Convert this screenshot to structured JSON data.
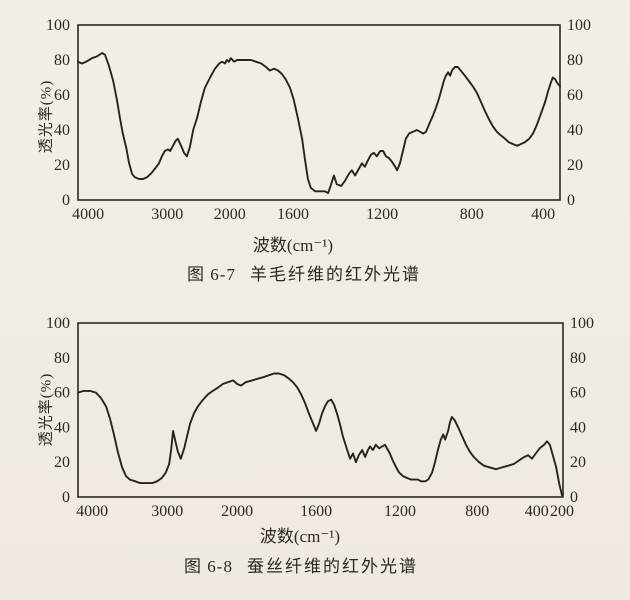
{
  "page": {
    "background_color": "#f2eee6",
    "ink_color": "#2c2823"
  },
  "chart_data": [
    {
      "type": "line",
      "title": "图 6-7  羊毛纤维的红外光谱",
      "caption": {
        "number": "图 6-7",
        "name": "羊毛纤维的红外光谱"
      },
      "xlabel": "波数(cm⁻¹)",
      "ylabel": "透光率(%)",
      "x_unit": "cm⁻¹",
      "ylim": [
        0,
        100
      ],
      "y_ticks": [
        100,
        80,
        60,
        40,
        20,
        0
      ],
      "y_ticks_right": [
        100,
        80,
        60,
        40,
        20,
        0
      ],
      "x_encoding": "fraction of plot width, wavenumber axis non-linear",
      "x_ticks": [
        {
          "label": "4000",
          "pos": 0.021
        },
        {
          "label": "3000",
          "pos": 0.185
        },
        {
          "label": "2000",
          "pos": 0.315
        },
        {
          "label": "1600",
          "pos": 0.446
        },
        {
          "label": "1200",
          "pos": 0.631
        },
        {
          "label": "800",
          "pos": 0.817
        },
        {
          "label": "400",
          "pos": 0.965
        }
      ],
      "axis_color": "#2c2823",
      "line_color": "#262320",
      "points": [
        [
          0.0,
          79
        ],
        [
          0.008,
          78
        ],
        [
          0.017,
          79
        ],
        [
          0.029,
          81
        ],
        [
          0.039,
          82
        ],
        [
          0.05,
          84
        ],
        [
          0.056,
          83
        ],
        [
          0.064,
          77
        ],
        [
          0.073,
          68
        ],
        [
          0.081,
          57
        ],
        [
          0.087,
          47
        ],
        [
          0.093,
          38
        ],
        [
          0.1,
          30
        ],
        [
          0.106,
          21
        ],
        [
          0.112,
          15
        ],
        [
          0.118,
          13
        ],
        [
          0.127,
          12
        ],
        [
          0.135,
          12
        ],
        [
          0.143,
          13
        ],
        [
          0.151,
          15
        ],
        [
          0.16,
          18
        ],
        [
          0.168,
          21
        ],
        [
          0.174,
          25
        ],
        [
          0.18,
          28
        ],
        [
          0.187,
          29
        ],
        [
          0.191,
          28
        ],
        [
          0.197,
          31
        ],
        [
          0.203,
          34
        ],
        [
          0.207,
          35
        ],
        [
          0.214,
          31
        ],
        [
          0.22,
          27
        ],
        [
          0.226,
          25
        ],
        [
          0.232,
          30
        ],
        [
          0.239,
          40
        ],
        [
          0.247,
          47
        ],
        [
          0.255,
          56
        ],
        [
          0.263,
          64
        ],
        [
          0.274,
          70
        ],
        [
          0.284,
          75
        ],
        [
          0.293,
          78
        ],
        [
          0.299,
          79
        ],
        [
          0.305,
          78
        ],
        [
          0.309,
          80
        ],
        [
          0.313,
          79
        ],
        [
          0.317,
          81
        ],
        [
          0.324,
          79
        ],
        [
          0.33,
          80
        ],
        [
          0.338,
          80
        ],
        [
          0.349,
          80
        ],
        [
          0.359,
          80
        ],
        [
          0.369,
          79
        ],
        [
          0.38,
          78
        ],
        [
          0.39,
          76
        ],
        [
          0.398,
          74
        ],
        [
          0.407,
          75
        ],
        [
          0.415,
          74
        ],
        [
          0.423,
          72
        ],
        [
          0.431,
          69
        ],
        [
          0.44,
          64
        ],
        [
          0.448,
          57
        ],
        [
          0.456,
          47
        ],
        [
          0.465,
          35
        ],
        [
          0.471,
          23
        ],
        [
          0.477,
          12
        ],
        [
          0.483,
          7
        ],
        [
          0.492,
          5
        ],
        [
          0.502,
          5
        ],
        [
          0.512,
          5
        ],
        [
          0.519,
          4
        ],
        [
          0.525,
          9
        ],
        [
          0.531,
          14
        ],
        [
          0.537,
          9
        ],
        [
          0.546,
          8
        ],
        [
          0.554,
          11
        ],
        [
          0.562,
          15
        ],
        [
          0.568,
          17
        ],
        [
          0.575,
          14
        ],
        [
          0.583,
          18
        ],
        [
          0.589,
          21
        ],
        [
          0.595,
          19
        ],
        [
          0.602,
          23
        ],
        [
          0.608,
          26
        ],
        [
          0.614,
          27
        ],
        [
          0.62,
          25
        ],
        [
          0.627,
          28
        ],
        [
          0.633,
          28
        ],
        [
          0.639,
          25
        ],
        [
          0.645,
          24
        ],
        [
          0.651,
          22
        ],
        [
          0.658,
          19
        ],
        [
          0.662,
          17
        ],
        [
          0.668,
          21
        ],
        [
          0.674,
          28
        ],
        [
          0.68,
          35
        ],
        [
          0.687,
          38
        ],
        [
          0.695,
          39
        ],
        [
          0.703,
          40
        ],
        [
          0.71,
          39
        ],
        [
          0.716,
          38
        ],
        [
          0.722,
          39
        ],
        [
          0.728,
          43
        ],
        [
          0.736,
          48
        ],
        [
          0.743,
          53
        ],
        [
          0.749,
          58
        ],
        [
          0.755,
          64
        ],
        [
          0.759,
          68
        ],
        [
          0.763,
          71
        ],
        [
          0.768,
          73
        ],
        [
          0.772,
          71
        ],
        [
          0.776,
          74
        ],
        [
          0.782,
          76
        ],
        [
          0.788,
          76
        ],
        [
          0.794,
          74
        ],
        [
          0.803,
          71
        ],
        [
          0.811,
          68
        ],
        [
          0.819,
          65
        ],
        [
          0.828,
          61
        ],
        [
          0.836,
          56
        ],
        [
          0.844,
          51
        ],
        [
          0.853,
          46
        ],
        [
          0.861,
          42
        ],
        [
          0.869,
          39
        ],
        [
          0.877,
          37
        ],
        [
          0.886,
          35
        ],
        [
          0.894,
          33
        ],
        [
          0.902,
          32
        ],
        [
          0.911,
          31
        ],
        [
          0.919,
          32
        ],
        [
          0.927,
          33
        ],
        [
          0.936,
          35
        ],
        [
          0.944,
          38
        ],
        [
          0.952,
          43
        ],
        [
          0.96,
          49
        ],
        [
          0.969,
          56
        ],
        [
          0.975,
          62
        ],
        [
          0.981,
          67
        ],
        [
          0.985,
          70
        ],
        [
          0.99,
          69
        ],
        [
          0.994,
          67
        ],
        [
          1.0,
          65
        ]
      ]
    },
    {
      "type": "line",
      "title": "图 6-8  蚕丝纤维的红外光谱",
      "caption": {
        "number": "图 6-8",
        "name": "蚕丝纤维的红外光谱"
      },
      "xlabel": "波数(cm⁻¹)",
      "ylabel": "透光率(%)",
      "x_unit": "cm⁻¹",
      "ylim": [
        0,
        100
      ],
      "y_ticks": [
        100,
        80,
        60,
        40,
        20,
        0
      ],
      "y_ticks_right": [
        100,
        80,
        60,
        40,
        20,
        0
      ],
      "x_encoding": "fraction of plot width, wavenumber axis non-linear",
      "x_ticks": [
        {
          "label": "4000",
          "pos": 0.029
        },
        {
          "label": "3000",
          "pos": 0.184
        },
        {
          "label": "2000",
          "pos": 0.328
        },
        {
          "label": "1600",
          "pos": 0.491
        },
        {
          "label": "1200",
          "pos": 0.664
        },
        {
          "label": "800",
          "pos": 0.823
        },
        {
          "label": "400",
          "pos": 0.946
        },
        {
          "label": "200",
          "pos": 0.998
        }
      ],
      "axis_color": "#2c2823",
      "line_color": "#262320",
      "points": [
        [
          0.0,
          60
        ],
        [
          0.012,
          61
        ],
        [
          0.025,
          61
        ],
        [
          0.037,
          60
        ],
        [
          0.047,
          57
        ],
        [
          0.058,
          52
        ],
        [
          0.066,
          45
        ],
        [
          0.074,
          36
        ],
        [
          0.082,
          26
        ],
        [
          0.091,
          17
        ],
        [
          0.099,
          12
        ],
        [
          0.107,
          10
        ],
        [
          0.118,
          9
        ],
        [
          0.128,
          8
        ],
        [
          0.14,
          8
        ],
        [
          0.153,
          8
        ],
        [
          0.163,
          9
        ],
        [
          0.173,
          11
        ],
        [
          0.181,
          14
        ],
        [
          0.188,
          19
        ],
        [
          0.192,
          27
        ],
        [
          0.196,
          38
        ],
        [
          0.2,
          33
        ],
        [
          0.206,
          26
        ],
        [
          0.212,
          22
        ],
        [
          0.219,
          28
        ],
        [
          0.225,
          35
        ],
        [
          0.231,
          42
        ],
        [
          0.239,
          48
        ],
        [
          0.247,
          52
        ],
        [
          0.258,
          56
        ],
        [
          0.268,
          59
        ],
        [
          0.278,
          61
        ],
        [
          0.289,
          63
        ],
        [
          0.299,
          65
        ],
        [
          0.309,
          66
        ],
        [
          0.32,
          67
        ],
        [
          0.328,
          65
        ],
        [
          0.336,
          64
        ],
        [
          0.346,
          66
        ],
        [
          0.359,
          67
        ],
        [
          0.371,
          68
        ],
        [
          0.384,
          69
        ],
        [
          0.394,
          70
        ],
        [
          0.404,
          71
        ],
        [
          0.414,
          71
        ],
        [
          0.425,
          70
        ],
        [
          0.435,
          68
        ],
        [
          0.443,
          66
        ],
        [
          0.452,
          63
        ],
        [
          0.46,
          59
        ],
        [
          0.468,
          54
        ],
        [
          0.476,
          48
        ],
        [
          0.485,
          42
        ],
        [
          0.491,
          38
        ],
        [
          0.497,
          42
        ],
        [
          0.503,
          48
        ],
        [
          0.509,
          52
        ],
        [
          0.515,
          55
        ],
        [
          0.522,
          56
        ],
        [
          0.528,
          53
        ],
        [
          0.534,
          48
        ],
        [
          0.54,
          42
        ],
        [
          0.546,
          35
        ],
        [
          0.555,
          27
        ],
        [
          0.561,
          22
        ],
        [
          0.567,
          25
        ],
        [
          0.573,
          20
        ],
        [
          0.579,
          24
        ],
        [
          0.586,
          27
        ],
        [
          0.592,
          23
        ],
        [
          0.598,
          27
        ],
        [
          0.602,
          29
        ],
        [
          0.608,
          27
        ],
        [
          0.614,
          30
        ],
        [
          0.621,
          28
        ],
        [
          0.627,
          29
        ],
        [
          0.633,
          30
        ],
        [
          0.639,
          27
        ],
        [
          0.643,
          25
        ],
        [
          0.649,
          21
        ],
        [
          0.656,
          17
        ],
        [
          0.662,
          14
        ],
        [
          0.67,
          12
        ],
        [
          0.678,
          11
        ],
        [
          0.687,
          10
        ],
        [
          0.695,
          10
        ],
        [
          0.701,
          10
        ],
        [
          0.707,
          9
        ],
        [
          0.716,
          9
        ],
        [
          0.722,
          10
        ],
        [
          0.73,
          14
        ],
        [
          0.736,
          20
        ],
        [
          0.742,
          27
        ],
        [
          0.748,
          33
        ],
        [
          0.753,
          36
        ],
        [
          0.757,
          33
        ],
        [
          0.763,
          38
        ],
        [
          0.767,
          43
        ],
        [
          0.771,
          46
        ],
        [
          0.777,
          44
        ],
        [
          0.784,
          40
        ],
        [
          0.792,
          35
        ],
        [
          0.8,
          30
        ],
        [
          0.808,
          26
        ],
        [
          0.816,
          23
        ],
        [
          0.827,
          20
        ],
        [
          0.837,
          18
        ],
        [
          0.849,
          17
        ],
        [
          0.862,
          16
        ],
        [
          0.874,
          17
        ],
        [
          0.887,
          18
        ],
        [
          0.899,
          19
        ],
        [
          0.909,
          21
        ],
        [
          0.92,
          23
        ],
        [
          0.928,
          24
        ],
        [
          0.936,
          22
        ],
        [
          0.944,
          25
        ],
        [
          0.952,
          28
        ],
        [
          0.961,
          30
        ],
        [
          0.967,
          32
        ],
        [
          0.973,
          30
        ],
        [
          0.979,
          24
        ],
        [
          0.986,
          17
        ],
        [
          0.992,
          8
        ],
        [
          0.998,
          1
        ]
      ]
    }
  ]
}
